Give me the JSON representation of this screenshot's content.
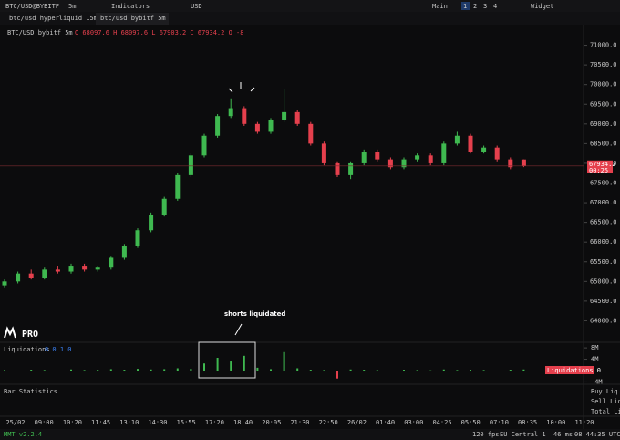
{
  "toolbar": {
    "symbol": "BTC/USD@BYBITF",
    "interval": "5m",
    "indicators": "Indicators",
    "currency": "USD",
    "layout": "Main",
    "layouts": [
      "1",
      "2",
      "3",
      "4"
    ],
    "widget": "Widget"
  },
  "tabs": [
    "btc/usd hyperliquid 15m",
    "btc/usd bybitf 5m"
  ],
  "logo": "PRO",
  "status": {
    "version": "MMT v2.2.4",
    "fps": "120 fps",
    "region": "EU Central 1",
    "latency": "46 ms",
    "clock": "08:44:35 UTC"
  },
  "chart_data": {
    "type": "candlestick",
    "title": "BTC/USD bybitf 5m",
    "ohlc_text": "O 68097.6 H 68097.6 L 67903.2 C 67934.2 O -8",
    "open": [
      64900,
      65000,
      65200,
      65100,
      65300,
      65250,
      65400,
      65300,
      65350,
      65600,
      65900,
      66300,
      66700,
      67100,
      67700,
      68200,
      68700,
      69200,
      69400,
      69000,
      68800,
      69100,
      69300,
      69000,
      68500,
      68000,
      67700,
      68000,
      68300,
      68100,
      67900,
      68100,
      68200,
      68000,
      68500,
      68700,
      68300,
      68400,
      68100,
      68097.6
    ],
    "high": [
      65050,
      65250,
      65300,
      65350,
      65400,
      65450,
      65450,
      65400,
      65650,
      65950,
      66350,
      66750,
      67150,
      67750,
      68250,
      68750,
      69250,
      69650,
      69450,
      69050,
      69150,
      69900,
      69350,
      69050,
      68550,
      68050,
      68050,
      68350,
      68350,
      68150,
      68150,
      68250,
      68250,
      68550,
      68800,
      68750,
      68450,
      68450,
      68150,
      68097.6
    ],
    "low": [
      64850,
      64950,
      65050,
      65050,
      65200,
      65200,
      65250,
      65250,
      65300,
      65550,
      65850,
      66250,
      66650,
      67050,
      67650,
      68150,
      68650,
      69150,
      68950,
      68750,
      68750,
      69050,
      68950,
      68450,
      67950,
      67650,
      67600,
      67950,
      68050,
      67850,
      67850,
      68050,
      67950,
      67950,
      68450,
      68250,
      68250,
      68050,
      67850,
      67903.2
    ],
    "close": [
      65000,
      65200,
      65100,
      65300,
      65250,
      65400,
      65300,
      65350,
      65600,
      65900,
      66300,
      66700,
      67100,
      67700,
      68200,
      68700,
      69200,
      69400,
      69000,
      68800,
      69100,
      69300,
      69000,
      68500,
      68000,
      67700,
      68000,
      68300,
      68100,
      67900,
      68100,
      68200,
      68000,
      68500,
      68700,
      68300,
      68400,
      68100,
      67900,
      67934.2
    ],
    "up_color": "#3fb950",
    "down_color": "#e5404d",
    "ylim": [
      63500,
      71500
    ],
    "yticks": [
      {
        "value": 64000,
        "label": "64000.0"
      },
      {
        "value": 64500,
        "label": "64500.0"
      },
      {
        "value": 65000,
        "label": "65000.0"
      },
      {
        "value": 65500,
        "label": "65500.0"
      },
      {
        "value": 66000,
        "label": "66000.0"
      },
      {
        "value": 66500,
        "label": "66500.0"
      },
      {
        "value": 67000,
        "label": "67000.0"
      },
      {
        "value": 67500,
        "label": "67500.0"
      },
      {
        "value": 68000,
        "label": "68000.0"
      },
      {
        "value": 68500,
        "label": "68500.0"
      },
      {
        "value": 69000,
        "label": "69000.0"
      },
      {
        "value": 69500,
        "label": "69500.0"
      },
      {
        "value": 70000,
        "label": "70000.0"
      },
      {
        "value": 70500,
        "label": "70500.0"
      },
      {
        "value": 71000,
        "label": "71000.0"
      }
    ],
    "last_price": {
      "value": 67934.2,
      "label": "67934.2",
      "countdown": "00:25"
    },
    "time_labels": [
      "25/02",
      "09:00",
      "10:20",
      "11:45",
      "13:10",
      "14:30",
      "15:55",
      "17:20",
      "18:40",
      "20:05",
      "21:30",
      "22:50",
      "26/02",
      "01:40",
      "03:00",
      "04:25",
      "05:50",
      "07:10",
      "08:35",
      "10:00",
      "11:20"
    ],
    "annotation": "shorts liquidated",
    "liquidations": {
      "name": "Liquidations",
      "legend_values": "8 0 1 0",
      "badge": "Liquidations 0",
      "values": [
        0.2,
        0,
        0.3,
        0.2,
        0,
        0.4,
        0.2,
        0.3,
        0.5,
        0.3,
        0.6,
        0.4,
        0.5,
        0.8,
        0.6,
        2.5,
        4.5,
        3.2,
        5.2,
        1,
        0.5,
        6.5,
        0.8,
        0.3,
        0.2,
        -2.8,
        0.4,
        0.3,
        0.2,
        0,
        0.3,
        0.2,
        0.1,
        0.4,
        0.2,
        0.3,
        0.2,
        0,
        0.3,
        0.4
      ],
      "ylim": [
        -4.5,
        9
      ],
      "yticks": [
        {
          "value": 8,
          "label": "8M"
        },
        {
          "value": 4,
          "label": "4M"
        },
        {
          "value": -4,
          "label": "-4M"
        }
      ]
    },
    "bar_statistics": {
      "name": "Bar Statistics",
      "labels": [
        "Buy Liq",
        "Sell Liq",
        "Total Liq"
      ]
    }
  }
}
